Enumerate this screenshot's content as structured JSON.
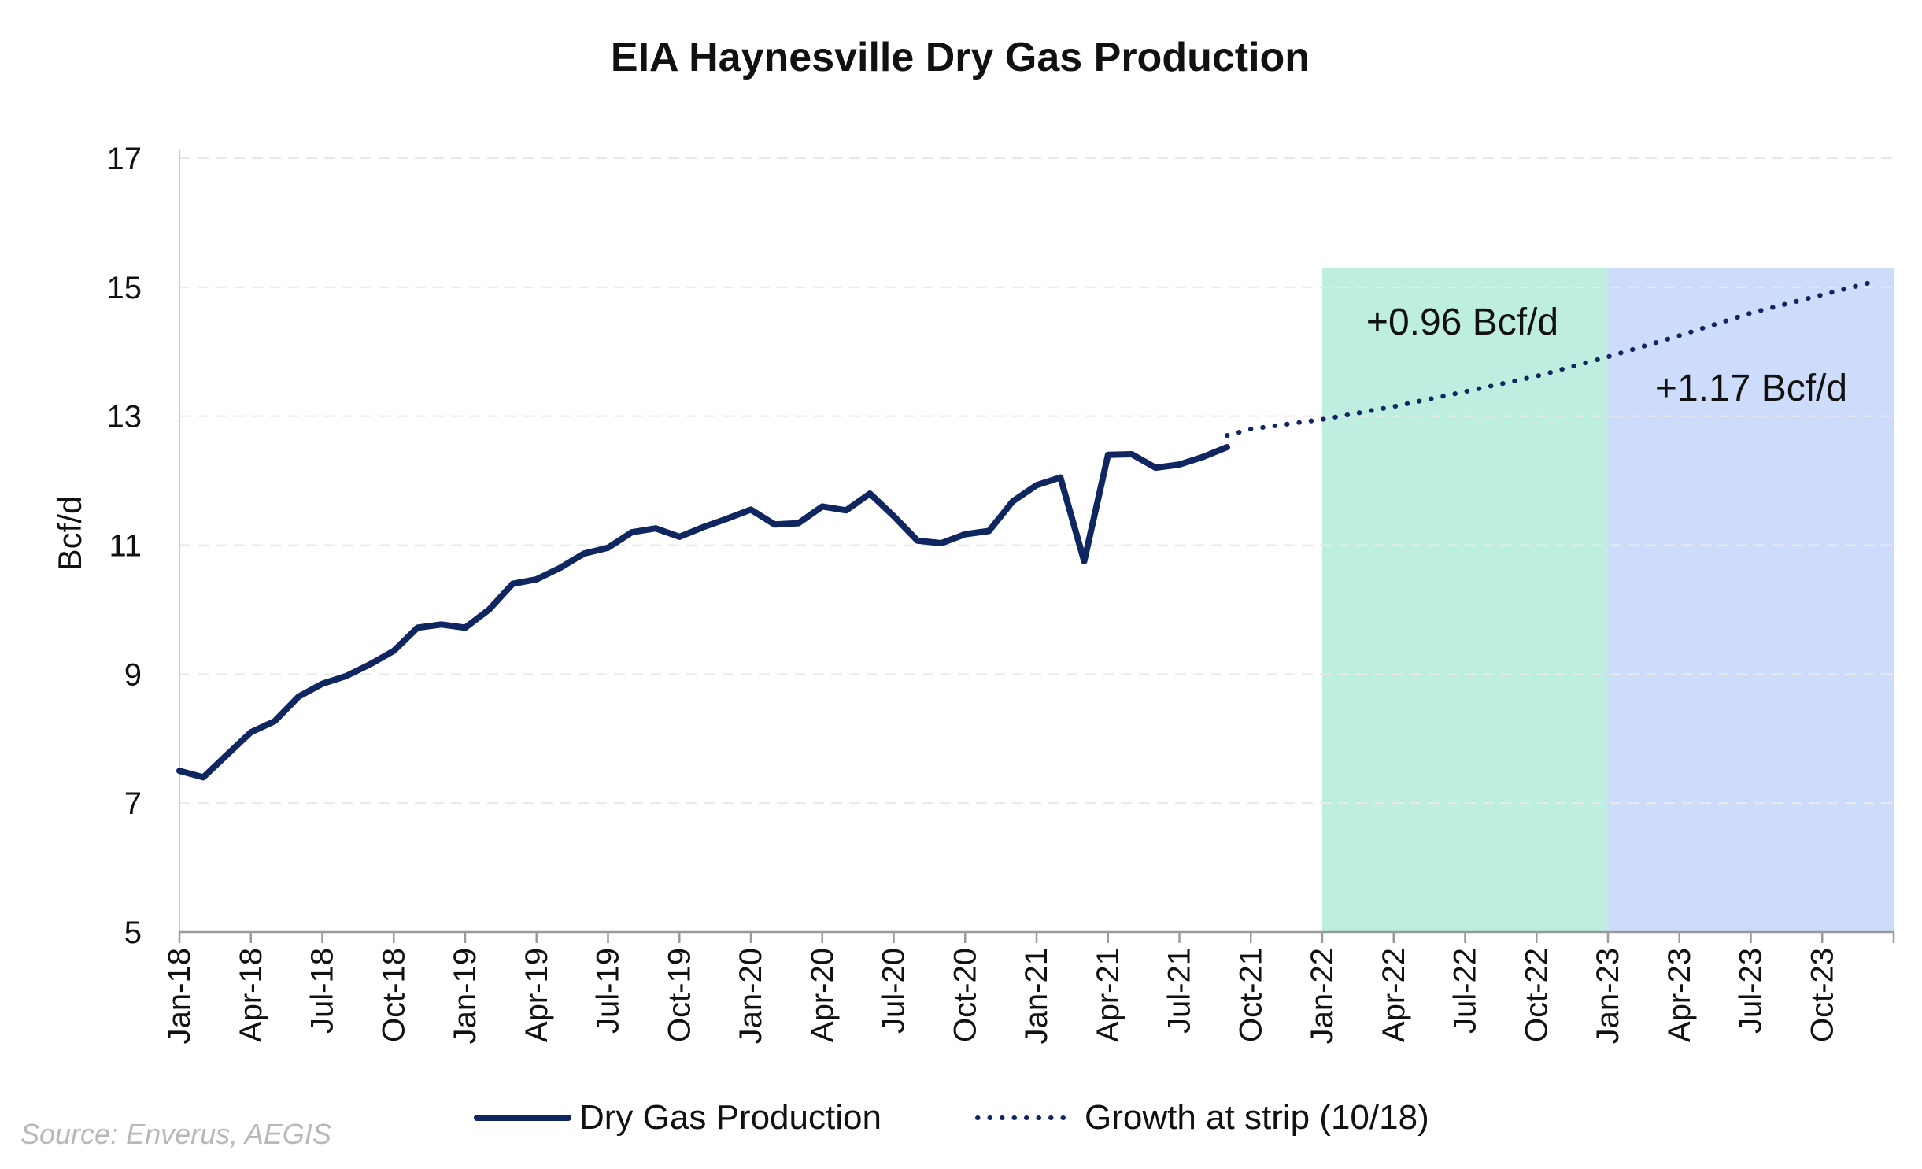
{
  "chart_data": {
    "type": "line",
    "title": "EIA Haynesville Dry Gas Production",
    "xlabel": "",
    "ylabel": "Bcf/d",
    "ylim": [
      5,
      17
    ],
    "yticks": [
      "5",
      "7",
      "9",
      "11",
      "13",
      "15",
      "17"
    ],
    "grid": "horizontal dashed",
    "legend_position": "bottom",
    "x_range": [
      "Jan-18",
      "Dec-23"
    ],
    "x_tick_labels": [
      "Jan-18",
      "Apr-18",
      "Jul-18",
      "Oct-18",
      "Jan-19",
      "Apr-19",
      "Jul-19",
      "Oct-19",
      "Jan-20",
      "Apr-20",
      "Jul-20",
      "Oct-20",
      "Jan-21",
      "Apr-21",
      "Jul-21",
      "Oct-21",
      "Jan-22",
      "Apr-22",
      "Jul-22",
      "Oct-22",
      "Jan-23",
      "Apr-23",
      "Jul-23",
      "Oct-23"
    ],
    "series": [
      {
        "name": "Dry Gas Production",
        "style": "solid",
        "color": "#0f2660",
        "x": [
          "Jan-18",
          "Feb-18",
          "Mar-18",
          "Apr-18",
          "May-18",
          "Jun-18",
          "Jul-18",
          "Aug-18",
          "Sep-18",
          "Oct-18",
          "Nov-18",
          "Dec-18",
          "Jan-19",
          "Feb-19",
          "Mar-19",
          "Apr-19",
          "May-19",
          "Jun-19",
          "Jul-19",
          "Aug-19",
          "Sep-19",
          "Oct-19",
          "Nov-19",
          "Dec-19",
          "Jan-20",
          "Feb-20",
          "Mar-20",
          "Apr-20",
          "May-20",
          "Jun-20",
          "Jul-20",
          "Aug-20",
          "Sep-20",
          "Oct-20",
          "Nov-20",
          "Dec-20",
          "Jan-21",
          "Feb-21",
          "Mar-21",
          "Apr-21",
          "May-21",
          "Jun-21",
          "Jul-21",
          "Aug-21",
          "Sep-21"
        ],
        "values": [
          7.5,
          7.4,
          7.75,
          8.1,
          8.27,
          8.65,
          8.85,
          8.97,
          9.15,
          9.36,
          9.72,
          9.77,
          9.72,
          10.0,
          10.4,
          10.47,
          10.65,
          10.87,
          10.96,
          11.2,
          11.26,
          11.13,
          11.28,
          11.41,
          11.55,
          11.32,
          11.34,
          11.6,
          11.54,
          11.8,
          11.45,
          11.07,
          11.03,
          11.17,
          11.22,
          11.68,
          11.93,
          12.05,
          10.75,
          12.4,
          12.41,
          12.2,
          12.25,
          12.37,
          12.52
        ]
      },
      {
        "name": "Growth at strip (10/18)",
        "style": "dotted",
        "color": "#0f2660",
        "x": [
          "Sep-21",
          "Oct-21",
          "Jan-22",
          "Apr-22",
          "Jul-22",
          "Oct-22",
          "Jan-23",
          "Apr-23",
          "Jul-23",
          "Dec-23"
        ],
        "values": [
          12.7,
          12.8,
          12.95,
          13.15,
          13.38,
          13.62,
          13.92,
          14.25,
          14.6,
          15.07
        ]
      }
    ],
    "shaded_regions": [
      {
        "x_start": "Jan-22",
        "x_end": "Jan-23",
        "color": "#bdeee0",
        "label": "+0.96 Bcf/d"
      },
      {
        "x_start": "Jan-23",
        "x_end": "Jan-24",
        "color": "#cddcfb",
        "label": "+1.17 Bcf/d"
      }
    ]
  },
  "source_note": "Source: Enverus, AEGIS"
}
